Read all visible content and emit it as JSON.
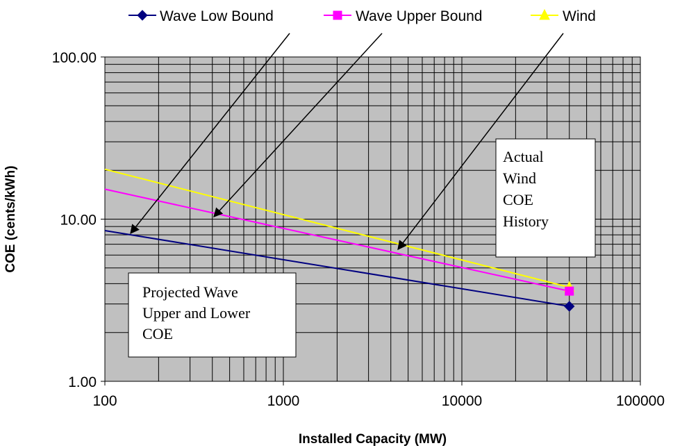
{
  "chart_data": {
    "type": "line",
    "xlabel": "Installed Capacity (MW)",
    "ylabel": "COE (cents/kWh)",
    "x_scale": "log",
    "y_scale": "log",
    "xlim": [
      100,
      100000
    ],
    "ylim": [
      1,
      100
    ],
    "x_ticks": [
      "100",
      "1000",
      "10000",
      "100000"
    ],
    "y_ticks": [
      "1.00",
      "10.00",
      "100.00"
    ],
    "grid": true,
    "legend_position": "top",
    "series": [
      {
        "name": "Wave Low Bound",
        "color": "#000080",
        "marker": "diamond",
        "x": [
          100,
          40000
        ],
        "y": [
          8.5,
          2.9
        ]
      },
      {
        "name": "Wave Upper Bound",
        "color": "#ff00ff",
        "marker": "square",
        "x": [
          100,
          40000
        ],
        "y": [
          15.3,
          3.6
        ]
      },
      {
        "name": "Wind",
        "color": "#ffff00",
        "marker": "triangle",
        "x": [
          100,
          40000
        ],
        "y": [
          20.3,
          3.8
        ]
      }
    ],
    "annotations": [
      {
        "lines": [
          "Projected Wave",
          "Upper and Lower",
          "COE"
        ]
      },
      {
        "lines": [
          "Actual",
          "Wind",
          "COE",
          "History"
        ]
      }
    ]
  }
}
